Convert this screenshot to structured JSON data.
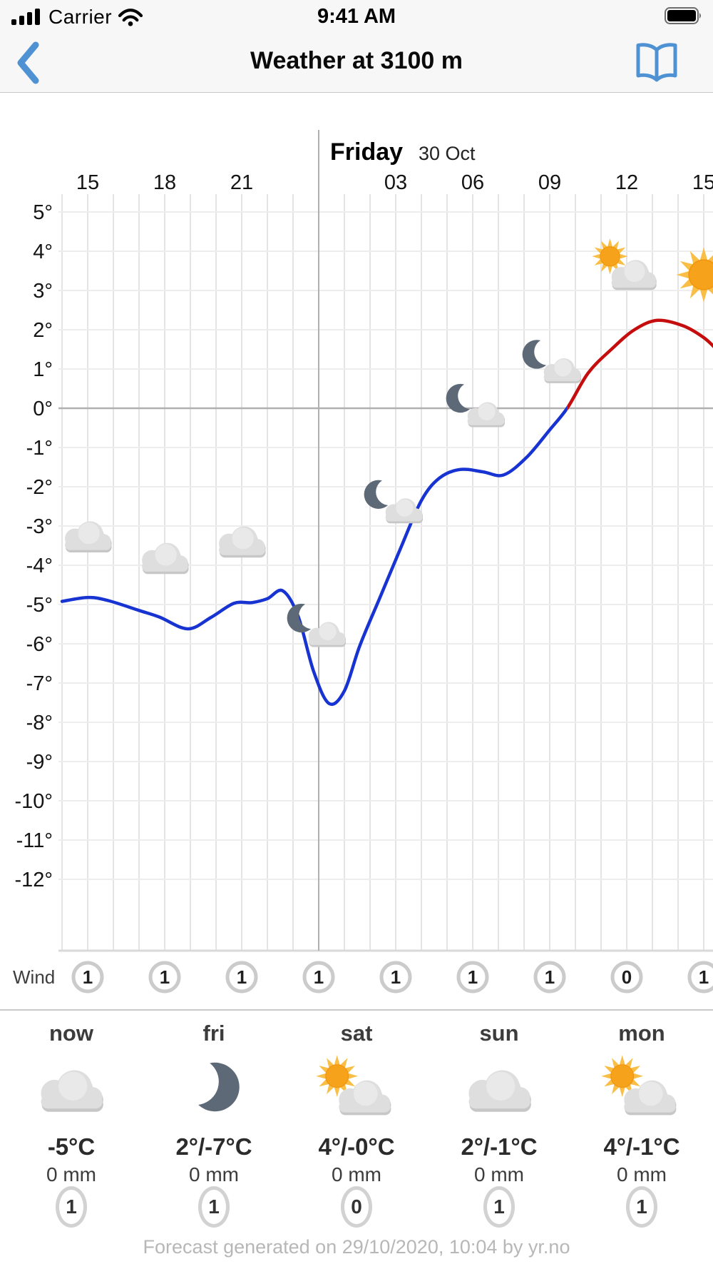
{
  "status_bar": {
    "carrier": "Carrier",
    "time": "9:41 AM",
    "signal_icon": "signal-strength-icon",
    "signal_bars": 4,
    "wifi_icon": "wifi-icon",
    "battery_icon": "battery-icon",
    "battery_level": "full"
  },
  "nav_bar": {
    "title": "Weather at 3100 m",
    "back_icon": "chevron-left-icon",
    "bookmarks_icon": "book-icon",
    "accent_color": "#4F92D3"
  },
  "chart_data": {
    "type": "line",
    "title": "Weather at 3100 m",
    "day_header": {
      "label": "Friday",
      "date": "30 Oct",
      "boundary_hour": 24
    },
    "x_axis": {
      "unit": "hour of day",
      "hour_range": [
        14,
        39.5
      ],
      "gridlines_every_hour": true,
      "ticks": [
        {
          "hour": 15,
          "label": "15"
        },
        {
          "hour": 18,
          "label": "18"
        },
        {
          "hour": 21,
          "label": "21"
        },
        {
          "hour": 27,
          "label": "03"
        },
        {
          "hour": 30,
          "label": "06"
        },
        {
          "hour": 33,
          "label": "09"
        },
        {
          "hour": 36,
          "label": "12"
        },
        {
          "hour": 39,
          "label": "15"
        }
      ]
    },
    "y_axis": {
      "unit": "°C",
      "max": 5,
      "min": -12,
      "labels": [
        "5°",
        "4°",
        "3°",
        "2°",
        "1°",
        "0°",
        "-1°",
        "-2°",
        "-3°",
        "-4°",
        "-5°",
        "-6°",
        "-7°",
        "-8°",
        "-9°",
        "-10°",
        "-11°",
        "-12°"
      ],
      "zero_line_emphasized": true
    },
    "series": [
      {
        "name": "temperature",
        "color_below_zero": "#1733D1",
        "color_above_zero": "#C60D0D",
        "points": [
          [
            14,
            -4.92
          ],
          [
            15,
            -4.82
          ],
          [
            15.8,
            -4.9
          ],
          [
            17,
            -5.15
          ],
          [
            17.8,
            -5.32
          ],
          [
            18.9,
            -5.62
          ],
          [
            19.8,
            -5.33
          ],
          [
            20.7,
            -4.97
          ],
          [
            21.4,
            -4.95
          ],
          [
            22,
            -4.85
          ],
          [
            22.6,
            -4.65
          ],
          [
            23.2,
            -5.3
          ],
          [
            23.8,
            -6.7
          ],
          [
            24.4,
            -7.52
          ],
          [
            25,
            -7.2
          ],
          [
            25.6,
            -6.05
          ],
          [
            26.4,
            -4.8
          ],
          [
            27.2,
            -3.55
          ],
          [
            28,
            -2.35
          ],
          [
            28.7,
            -1.78
          ],
          [
            29.5,
            -1.56
          ],
          [
            30.4,
            -1.62
          ],
          [
            31.2,
            -1.7
          ],
          [
            32.1,
            -1.25
          ],
          [
            33,
            -0.55
          ],
          [
            33.7,
            0.02
          ],
          [
            34.5,
            0.9
          ],
          [
            35.4,
            1.5
          ],
          [
            36.3,
            2.0
          ],
          [
            37.2,
            2.24
          ],
          [
            38.2,
            2.1
          ],
          [
            39,
            1.8
          ],
          [
            39.5,
            1.5
          ]
        ]
      }
    ],
    "weather_icons": [
      {
        "hour": 15,
        "icon": "cloud-icon",
        "anchor_temp": -3.2
      },
      {
        "hour": 18,
        "icon": "cloud-icon",
        "anchor_temp": -3.75
      },
      {
        "hour": 21,
        "icon": "cloud-icon",
        "anchor_temp": -3.33
      },
      {
        "hour": 24,
        "icon": "moon-cloud-icon",
        "anchor_temp": -5.55
      },
      {
        "hour": 27,
        "icon": "moon-cloud-icon",
        "anchor_temp": -2.4
      },
      {
        "hour": 30,
        "icon": "moon-cloud-icon",
        "anchor_temp": 0.05,
        "dx": 7
      },
      {
        "hour": 33,
        "icon": "moon-cloud-icon",
        "anchor_temp": 1.17,
        "dx": 6
      },
      {
        "hour": 36,
        "icon": "sun-cloud-icon",
        "anchor_temp": 3.63
      },
      {
        "hour": 39,
        "icon": "sun-icon",
        "anchor_temp": 3.4
      }
    ],
    "wind_row": {
      "label": "Wind",
      "values": [
        {
          "hour": 15,
          "value": "1"
        },
        {
          "hour": 18,
          "value": "1"
        },
        {
          "hour": 21,
          "value": "1"
        },
        {
          "hour": 24,
          "value": "1"
        },
        {
          "hour": 27,
          "value": "1"
        },
        {
          "hour": 30,
          "value": "1"
        },
        {
          "hour": 33,
          "value": "1"
        },
        {
          "hour": 36,
          "value": "0"
        },
        {
          "hour": 39,
          "value": "1"
        }
      ]
    }
  },
  "summary": {
    "columns": [
      {
        "label": "now",
        "icon": "cloud-icon",
        "temp": "-5°C",
        "precipitation": "0 mm",
        "wind": "1"
      },
      {
        "label": "fri",
        "icon": "moon-icon",
        "temp": "2°/-7°C",
        "precipitation": "0 mm",
        "wind": "1"
      },
      {
        "label": "sat",
        "icon": "sun-cloud-icon",
        "temp": "4°/-0°C",
        "precipitation": "0 mm",
        "wind": "0"
      },
      {
        "label": "sun",
        "icon": "cloud-icon",
        "temp": "2°/-1°C",
        "precipitation": "0 mm",
        "wind": "1"
      },
      {
        "label": "mon",
        "icon": "sun-cloud-icon",
        "temp": "4°/-1°C",
        "precipitation": "0 mm",
        "wind": "1"
      }
    ]
  },
  "footer": {
    "text": "Forecast generated on 29/10/2020, 10:04 by yr.no"
  }
}
